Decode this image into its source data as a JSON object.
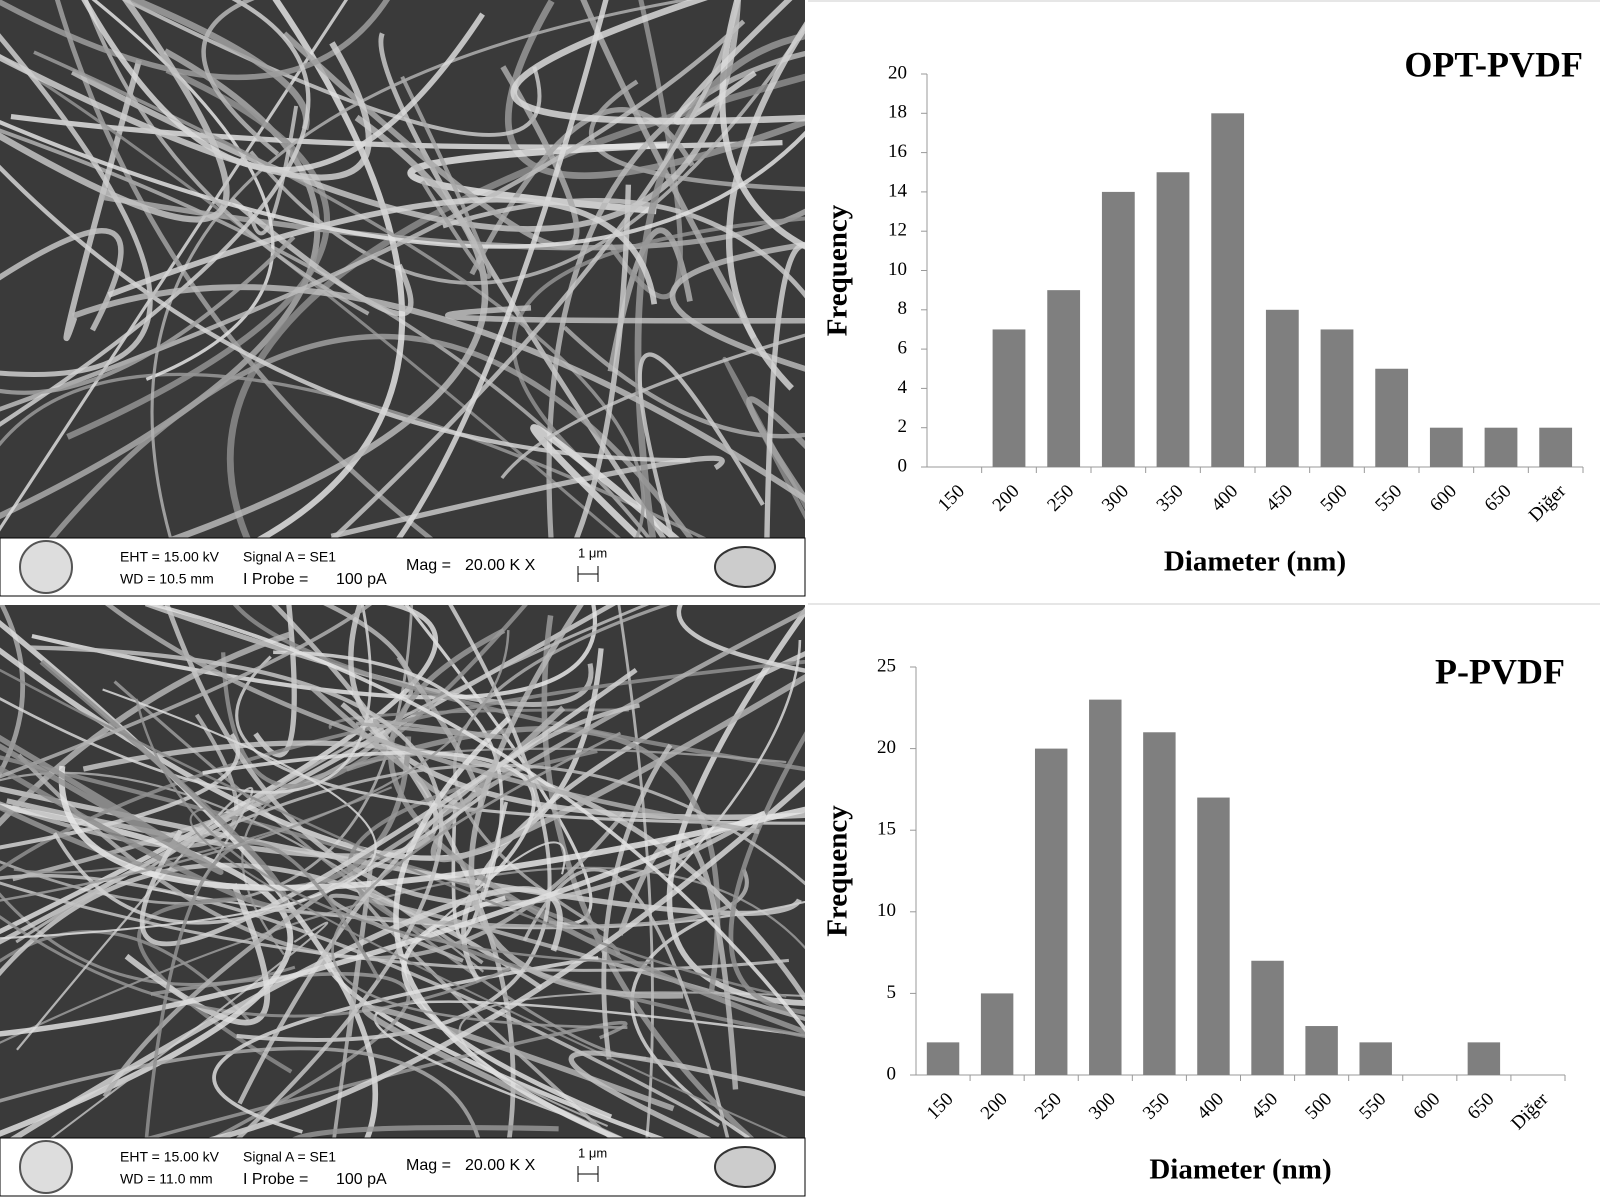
{
  "chart_data": [
    {
      "type": "bar",
      "title": "OPT-PVDF",
      "x_label": "Diameter (nm)",
      "y_label": "Frequency",
      "categories": [
        "150",
        "200",
        "250",
        "300",
        "350",
        "400",
        "450",
        "500",
        "550",
        "600",
        "650",
        "Diğer"
      ],
      "values": [
        0,
        7,
        9,
        14,
        15,
        18,
        8,
        7,
        5,
        2,
        2,
        2
      ],
      "color": "#7f7f7f",
      "ylim": [
        0,
        20
      ],
      "yticks": [
        0,
        2,
        4,
        6,
        8,
        10,
        12,
        14,
        16,
        18,
        20
      ],
      "grid": false
    },
    {
      "type": "bar",
      "title": "P-PVDF",
      "x_label": "Diameter (nm)",
      "y_label": "Frequency",
      "categories": [
        "150",
        "200",
        "250",
        "300",
        "350",
        "400",
        "450",
        "500",
        "550",
        "600",
        "650",
        "Diğer"
      ],
      "values": [
        2,
        5,
        20,
        23,
        21,
        17,
        7,
        3,
        2,
        0,
        2,
        0
      ],
      "color": "#7f7f7f",
      "ylim": [
        0,
        25
      ],
      "yticks": [
        0,
        5,
        10,
        15,
        20,
        25
      ],
      "grid": false
    }
  ],
  "sem_panels": [
    {
      "eht": "EHT = 15.00 kV",
      "wd": "WD = 10.5 mm",
      "signal": "Signal A = SE1",
      "probe": "I Probe =",
      "probe_value": "100 pA",
      "mag": "Mag =",
      "mag_value": "20.00 K X",
      "scale": "1 μm"
    },
    {
      "eht": "EHT = 15.00 kV",
      "wd": "WD = 11.0 mm",
      "signal": "Signal A = SE1",
      "probe": "I Probe =",
      "probe_value": "100 pA",
      "mag": "Mag =",
      "mag_value": "20.00 K X",
      "scale": "1 μm"
    }
  ]
}
